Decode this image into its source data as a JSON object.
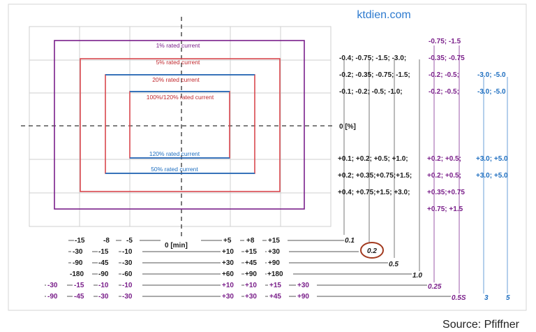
{
  "watermark": "ktdien.com",
  "source": "Source: Pfiffner",
  "colors": {
    "black": "#1a1a1a",
    "purple": "#7a1f8a",
    "red": "#c0282e",
    "blue": "#1f6fc0",
    "grid": "#cfcfcf",
    "highlight": "#a23a1f"
  },
  "boxes": {
    "b1": "1% rated current",
    "b5": "5% rated current",
    "b20": "20% rated current",
    "b100": "100%/120% rated current",
    "b120": "120% rated current",
    "b50": "50% rated current"
  },
  "axis": {
    "zero_pct": "0 [%]",
    "zero_min": "0 [min]"
  },
  "upper_rows": {
    "top_purple": "-0.75; -1.5",
    "row1_black": "-0.4; -0.75; -1.5; -3.0;",
    "row1_purple": "-0.35; -0.75",
    "row2_black": "-0.2; -0.35; -0.75; -1.5;",
    "row2_purple": "-0.2; -0.5;",
    "row2_blue": "-3.0; -5.0",
    "row3_black": "-0.1; -0.2; -0.5; -1.0;",
    "row3_purple": "-0.2; -0.5;",
    "row3_blue": "-3.0; -5.0"
  },
  "lower_rows": {
    "row1_black": "+0.1; +0.2; +0.5; +1.0;",
    "row1_purple": "+0.2; +0.5;",
    "row1_blue": "+3.0; +5.0",
    "row2_black": "+0.2; +0.35;+0.75;+1.5;",
    "row2_purple": "+0.2; +0.5;",
    "row2_blue": "+3.0; +5.0",
    "row3_black": "+0.4; +0.75;+1.5; +3.0;",
    "row3_purple": "+0.35;+0.75",
    "bottom_purple": "+0.75; +1.5"
  },
  "time_rows": {
    "r1": {
      "neg": [
        "-15",
        "-8",
        "-5"
      ],
      "pos": [
        "+5",
        "+8",
        "+15"
      ],
      "end": "0.1"
    },
    "r2": {
      "neg": [
        "-30",
        "-15",
        "-10"
      ],
      "pos": [
        "+10",
        "+15",
        "+30"
      ],
      "end": "0.2"
    },
    "r3": {
      "neg": [
        "-90",
        "-45",
        "-30"
      ],
      "pos": [
        "+30",
        "+45",
        "+90"
      ],
      "end": "0.5"
    },
    "r4": {
      "neg": [
        "-180",
        "-90",
        "-60"
      ],
      "pos": [
        "+60",
        "+90",
        "+180"
      ],
      "end": "1.0"
    },
    "r5": {
      "neg": [
        "-30",
        "-15",
        "-10",
        "-10"
      ],
      "pos": [
        "+10",
        "+10",
        "+15",
        "+30"
      ],
      "end": "0.25"
    },
    "r6": {
      "neg": [
        "-90",
        "-45",
        "-30",
        "-30"
      ],
      "pos": [
        "+30",
        "+30",
        "+45",
        "+90"
      ],
      "end": "0.5S"
    }
  },
  "class_labels": {
    "c3": "3",
    "c5": "5"
  }
}
